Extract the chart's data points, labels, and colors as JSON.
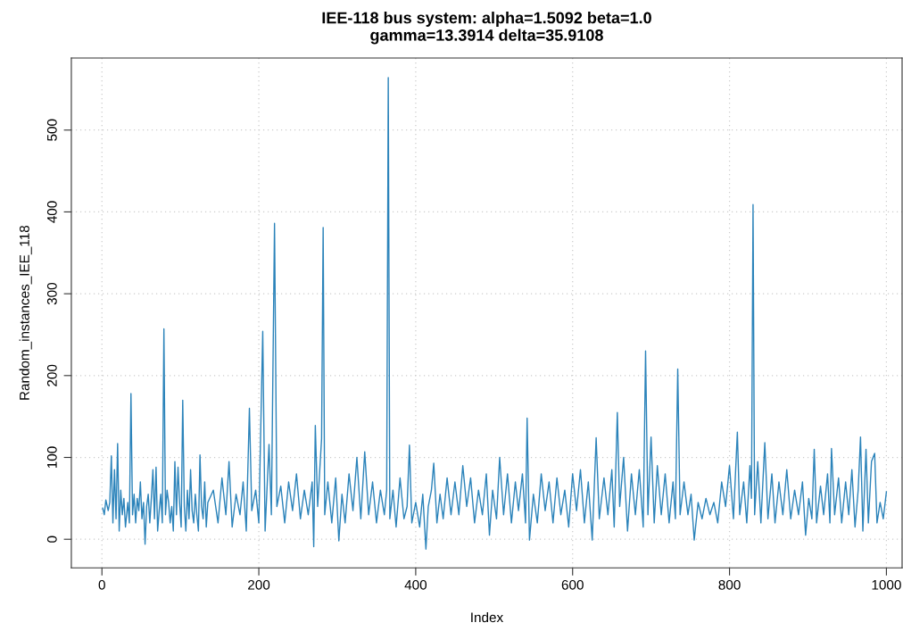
{
  "chart_data": {
    "type": "line",
    "title": "IEE-118 bus system: alpha=1.5092 beta=1.0\ngamma=13.3914 delta=35.9108",
    "xlabel": "Index",
    "ylabel": "Random_instances_IEE_118",
    "xlim": [
      -39,
      1020
    ],
    "ylim": [
      -35,
      588
    ],
    "xticks": [
      0,
      200,
      400,
      600,
      800,
      1000
    ],
    "yticks": [
      0,
      100,
      200,
      300,
      400,
      500
    ],
    "grid": true,
    "marker": "none",
    "line_style": "solid",
    "series": [
      {
        "color": "#2b83ba",
        "x": [
          1,
          3,
          5,
          8,
          10,
          12,
          14,
          16,
          18,
          20,
          22,
          24,
          26,
          28,
          30,
          33,
          35,
          37,
          39,
          41,
          43,
          45,
          47,
          49,
          51,
          53,
          55,
          57,
          59,
          61,
          63,
          65,
          67,
          69,
          71,
          73,
          75,
          77,
          79,
          81,
          83,
          85,
          87,
          89,
          91,
          93,
          95,
          97,
          99,
          101,
          103,
          105,
          107,
          109,
          111,
          113,
          115,
          117,
          119,
          121,
          123,
          125,
          127,
          129,
          131,
          133,
          135,
          142,
          148,
          153,
          158,
          162,
          166,
          171,
          176,
          180,
          184,
          188,
          191,
          196,
          200,
          205,
          208,
          213,
          216,
          220,
          223,
          228,
          233,
          238,
          243,
          248,
          253,
          258,
          263,
          268,
          270,
          272,
          275,
          278,
          280,
          282,
          284,
          288,
          293,
          298,
          302,
          306,
          310,
          315,
          320,
          325,
          330,
          335,
          340,
          345,
          350,
          355,
          360,
          363,
          365,
          367,
          371,
          375,
          380,
          385,
          389,
          392,
          395,
          400,
          405,
          409,
          413,
          416,
          420,
          423,
          427,
          431,
          435,
          440,
          445,
          450,
          455,
          460,
          465,
          470,
          475,
          480,
          485,
          490,
          494,
          498,
          503,
          507,
          512,
          517,
          522,
          527,
          531,
          536,
          540,
          542,
          545,
          550,
          555,
          560,
          565,
          570,
          575,
          580,
          585,
          590,
          595,
          600,
          605,
          610,
          615,
          620,
          625,
          630,
          634,
          640,
          645,
          650,
          653,
          657,
          660,
          665,
          670,
          675,
          680,
          685,
          690,
          693,
          696,
          700,
          704,
          708,
          713,
          718,
          723,
          728,
          731,
          734,
          737,
          742,
          747,
          751,
          755,
          760,
          765,
          770,
          775,
          780,
          785,
          790,
          795,
          800,
          805,
          810,
          813,
          818,
          822,
          826,
          828,
          830,
          832,
          836,
          840,
          845,
          849,
          854,
          858,
          863,
          868,
          873,
          878,
          883,
          888,
          893,
          897,
          901,
          905,
          908,
          911,
          916,
          920,
          925,
          928,
          930,
          934,
          939,
          943,
          948,
          952,
          956,
          960,
          964,
          967,
          970,
          974,
          977,
          981,
          985,
          988,
          992,
          996,
          1000
        ],
        "values": [
          38,
          30,
          48,
          35,
          45,
          102,
          20,
          85,
          25,
          117,
          10,
          60,
          30,
          50,
          15,
          45,
          20,
          178,
          30,
          55,
          20,
          50,
          35,
          70,
          25,
          45,
          -6,
          40,
          55,
          20,
          50,
          85,
          25,
          88,
          10,
          35,
          55,
          20,
          257,
          30,
          60,
          45,
          20,
          40,
          10,
          95,
          30,
          88,
          45,
          15,
          170,
          40,
          10,
          60,
          25,
          85,
          35,
          20,
          55,
          30,
          10,
          103,
          40,
          25,
          70,
          15,
          45,
          60,
          20,
          75,
          30,
          95,
          15,
          55,
          30,
          70,
          10,
          160,
          35,
          60,
          20,
          254,
          10,
          116,
          30,
          386,
          40,
          65,
          20,
          70,
          35,
          80,
          25,
          60,
          30,
          70,
          -9,
          139,
          40,
          90,
          123,
          381,
          30,
          70,
          20,
          75,
          -2,
          55,
          20,
          80,
          35,
          100,
          25,
          107,
          30,
          70,
          20,
          60,
          30,
          60,
          564,
          25,
          60,
          15,
          75,
          25,
          40,
          115,
          20,
          45,
          15,
          55,
          -12,
          40,
          60,
          93,
          20,
          55,
          25,
          75,
          30,
          70,
          30,
          90,
          40,
          75,
          20,
          60,
          30,
          80,
          5,
          60,
          25,
          100,
          30,
          80,
          20,
          70,
          35,
          80,
          20,
          148,
          -1,
          55,
          20,
          80,
          35,
          70,
          20,
          75,
          30,
          60,
          15,
          80,
          35,
          85,
          20,
          70,
          -1,
          124,
          25,
          75,
          30,
          85,
          15,
          155,
          40,
          100,
          10,
          80,
          30,
          85,
          15,
          230,
          30,
          125,
          20,
          90,
          30,
          80,
          20,
          70,
          25,
          208,
          30,
          70,
          30,
          55,
          -1,
          45,
          25,
          50,
          30,
          45,
          20,
          70,
          40,
          90,
          25,
          131,
          30,
          70,
          20,
          90,
          50,
          409,
          30,
          95,
          20,
          118,
          25,
          80,
          20,
          70,
          30,
          85,
          25,
          60,
          30,
          70,
          5,
          50,
          25,
          110,
          20,
          65,
          30,
          80,
          20,
          111,
          30,
          75,
          20,
          70,
          30,
          85,
          15,
          60,
          125,
          10,
          110,
          20,
          95,
          105,
          20,
          45,
          25,
          58
        ]
      }
    ]
  }
}
